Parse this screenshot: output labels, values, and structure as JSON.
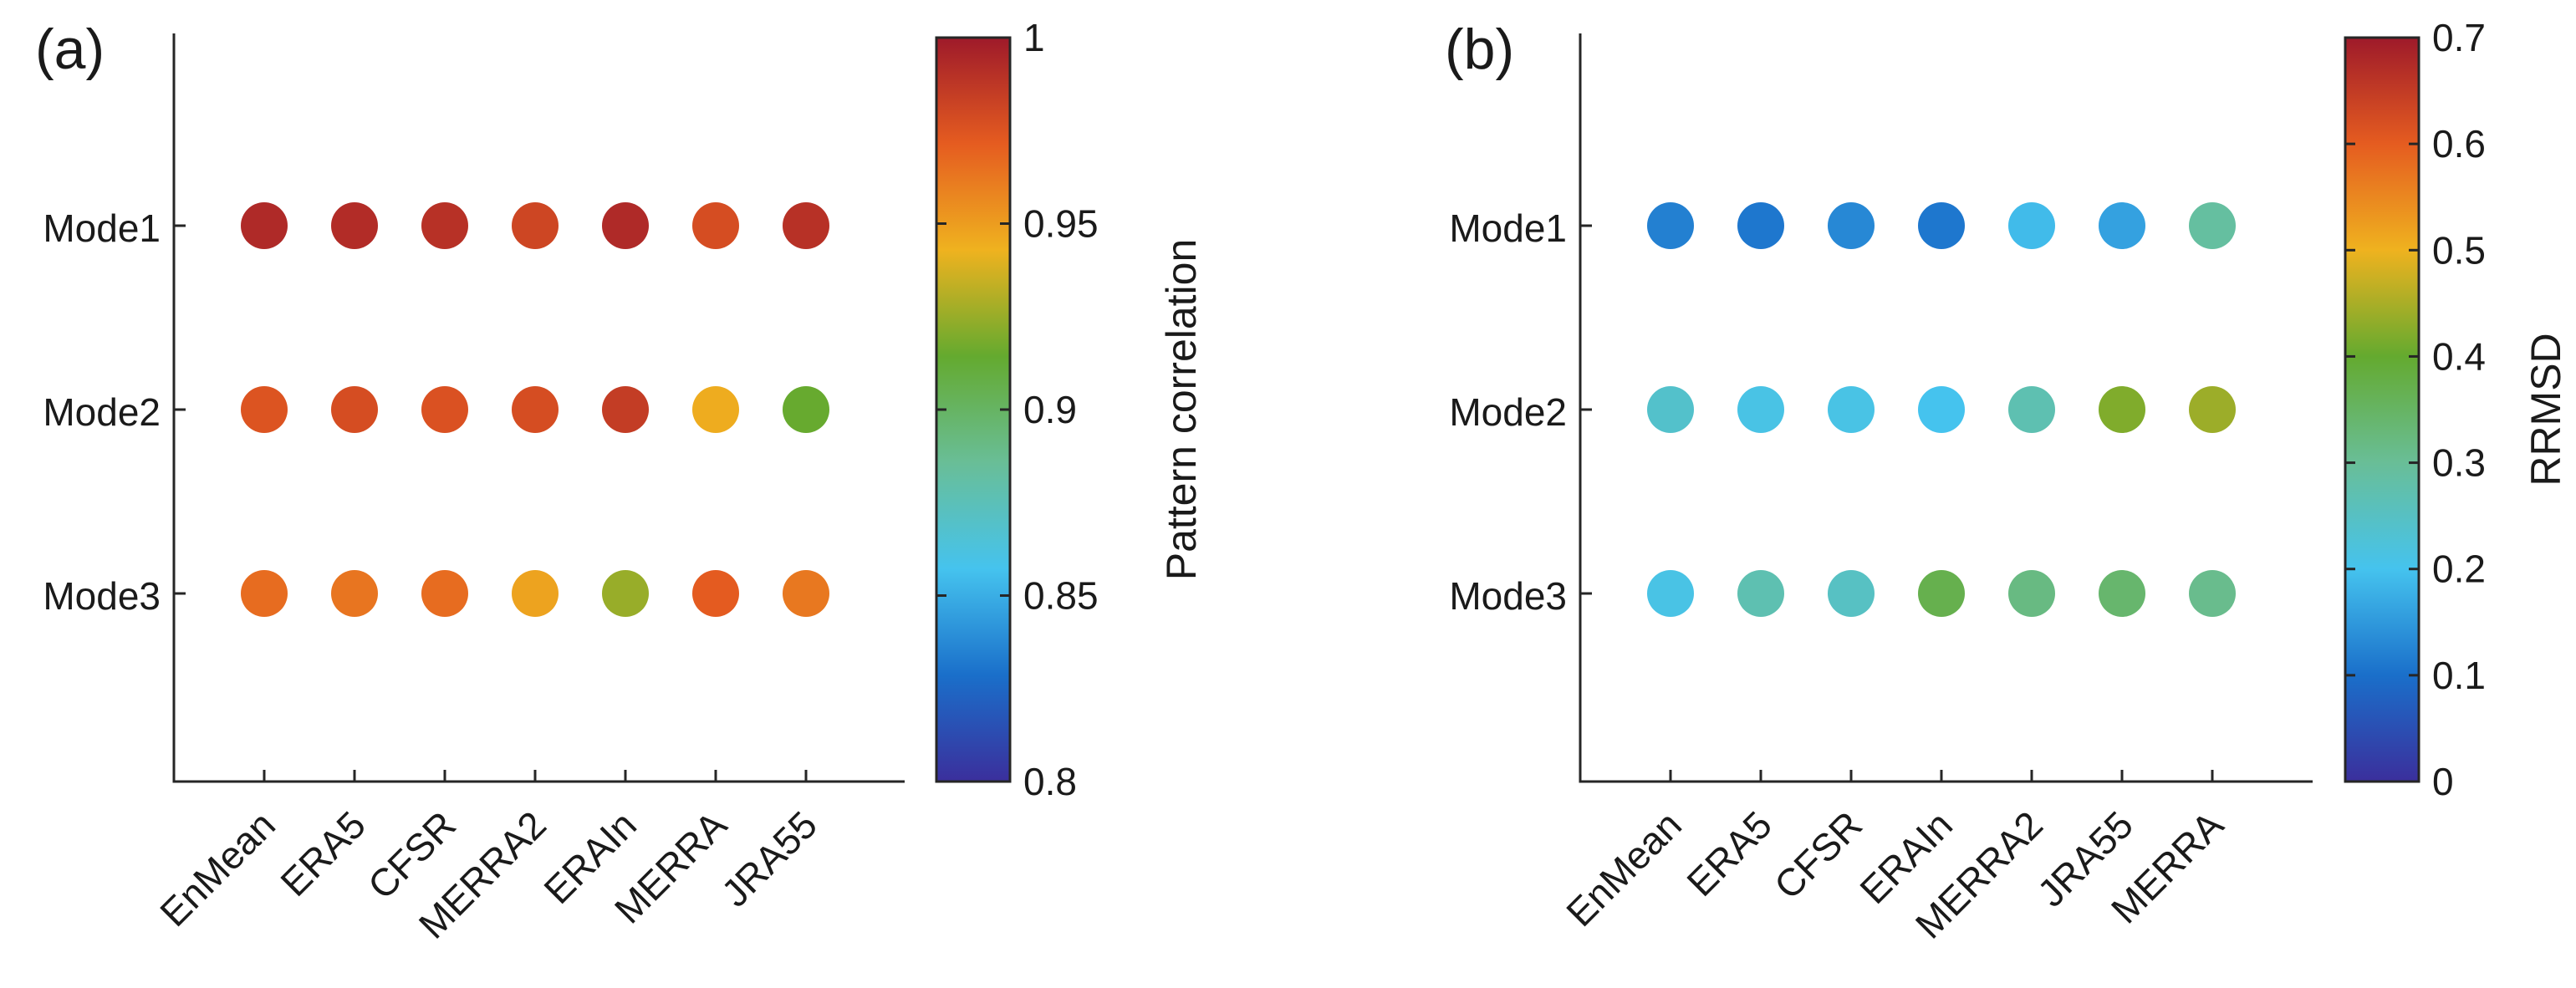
{
  "figure": {
    "type": "dot-matrix"
  },
  "chart_data": [
    {
      "type": "scatter",
      "panel_label": "(a)",
      "y_categories": [
        "Mode1",
        "Mode2",
        "Mode3"
      ],
      "x_categories": [
        "EnMean",
        "ERA5",
        "CFSR",
        "MERRA2",
        "ERAIn",
        "MERRA",
        "JRA55"
      ],
      "values": [
        [
          0.993,
          0.992,
          0.99,
          0.981,
          0.993,
          0.978,
          0.99
        ],
        [
          0.975,
          0.978,
          0.976,
          0.978,
          0.985,
          0.945,
          0.915
        ],
        [
          0.966,
          0.963,
          0.966,
          0.948,
          0.925,
          0.972,
          0.962
        ]
      ],
      "colorbar": {
        "label": "Pattern correlation",
        "range": [
          0.8,
          1
        ],
        "ticks": [
          0.8,
          0.85,
          0.9,
          0.95,
          1
        ],
        "tick_labels": [
          "0.8",
          "0.85",
          "0.9",
          "0.95",
          "1"
        ]
      }
    },
    {
      "type": "scatter",
      "panel_label": "(b)",
      "y_categories": [
        "Mode1",
        "Mode2",
        "Mode3"
      ],
      "x_categories": [
        "EnMean",
        "ERA5",
        "CFSR",
        "ERAIn",
        "MERRA2",
        "JRA55",
        "MERRA"
      ],
      "values": [
        [
          0.12,
          0.11,
          0.13,
          0.11,
          0.19,
          0.16,
          0.29
        ],
        [
          0.24,
          0.21,
          0.21,
          0.2,
          0.27,
          0.42,
          0.44
        ],
        [
          0.21,
          0.27,
          0.25,
          0.37,
          0.32,
          0.34,
          0.31
        ]
      ],
      "colorbar": {
        "label": "RRMSD",
        "range": [
          0,
          0.7
        ],
        "ticks": [
          0,
          0.1,
          0.2,
          0.3,
          0.4,
          0.5,
          0.6,
          0.7
        ],
        "tick_labels": [
          "0",
          "0.1",
          "0.2",
          "0.3",
          "0.4",
          "0.5",
          "0.6",
          "0.7"
        ]
      }
    }
  ],
  "colormap": [
    "#3b2f9c",
    "#1a6fca",
    "#45c3ee",
    "#69be97",
    "#64aa2f",
    "#efb21f",
    "#e55c20",
    "#9e1a2a"
  ]
}
